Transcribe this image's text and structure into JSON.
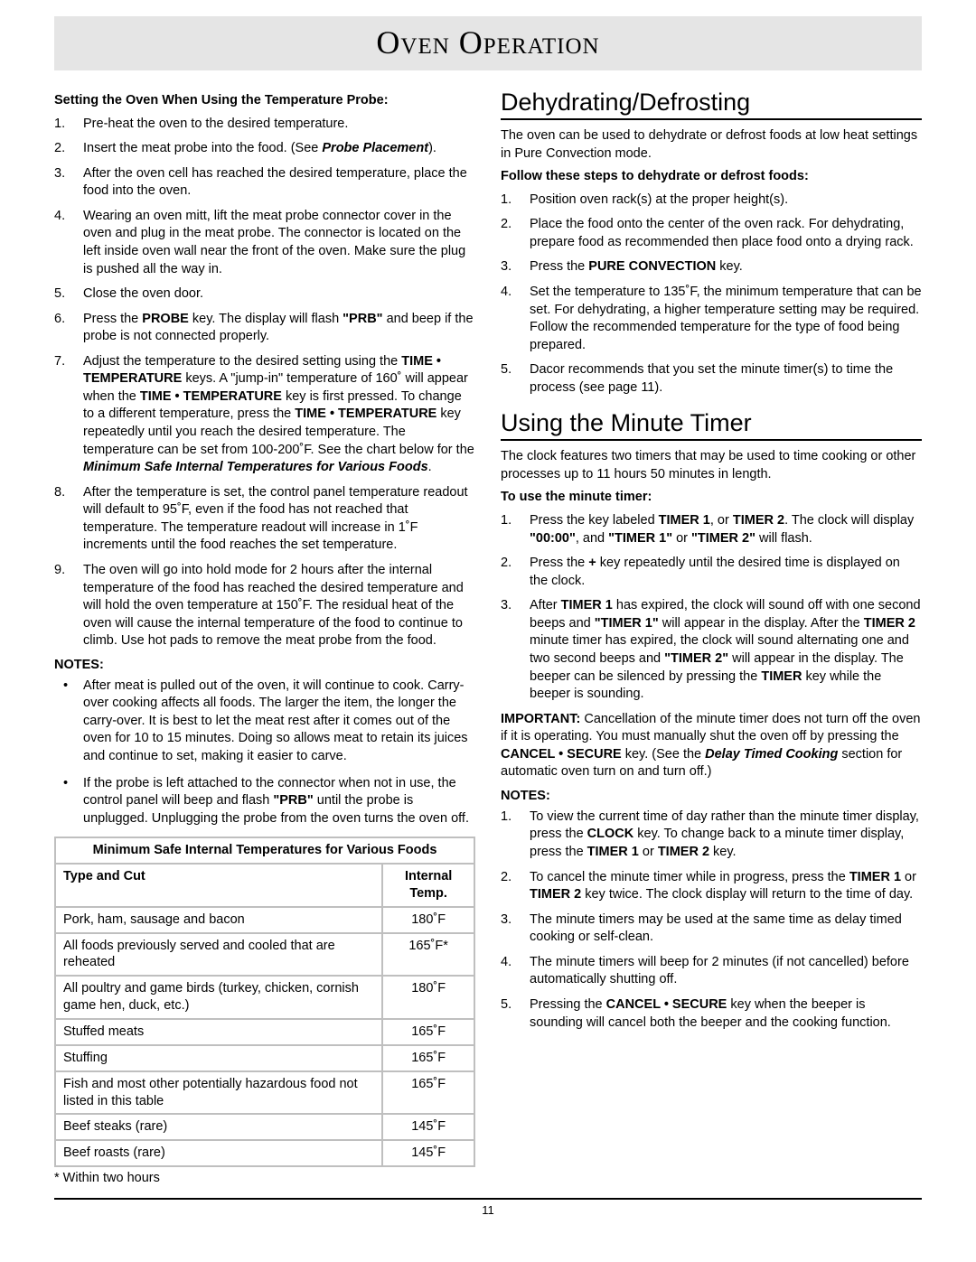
{
  "page": {
    "title": "Oven Operation",
    "page_number": "11"
  },
  "left": {
    "subhead": "Setting the Oven When Using the Temperature Probe:",
    "steps": [
      "Pre-heat the oven to the desired temperature.",
      "Insert the meat probe into the food. (See <span class=\"bi\">Probe Placement</span>).",
      "After the oven cell has reached the desired temperature, place the food into the oven.",
      "Wearing an oven mitt, lift the meat probe connector cover in the oven and plug in the meat probe. The connector is located on the left inside oven wall near the front of the oven. Make sure the plug is pushed all the way in.",
      "Close the oven door.",
      "Press the <span class=\"b\">PROBE</span> key. The display will flash <span class=\"b\">\"PRB\"</span> and beep if the probe is not connected properly.",
      "Adjust the temperature to the desired setting using the <span class=\"b\">TIME • TEMPERATURE</span> keys. A \"jump-in\" temperature of 160˚ will appear when the <span class=\"b\">TIME • TEMPERATURE</span> key is first pressed. To change to a different temperature, press the <span class=\"b\">TIME • TEMPERATURE</span> key repeatedly until you reach the desired temperature. The temperature can be set from 100-200˚F. See the chart below for the <span class=\"bi\">Minimum Safe Internal Temperatures for Various Foods</span>.",
      "After the temperature is set, the control panel temperature readout will default to 95˚F, even if the food has not reached that temperature. The temperature readout will increase in 1˚F increments until the food reaches the set temperature.",
      "The oven will go into hold mode for 2 hours after the internal temperature of the food has reached the desired temperature and will hold the oven temperature at 150˚F. The residual heat of the oven will cause the internal temperature of the food to continue to climb. Use hot pads to remove the meat probe from the food."
    ],
    "notes_label": "NOTES:",
    "notes": [
      "After meat is pulled out of the oven, it will continue to cook. Carry-over cooking affects all foods. The larger the item, the longer the carry-over. It is best to let the meat rest after it comes out of the oven for 10 to 15 minutes. Doing so allows meat to retain its juices and continue to set, making it easier to carve.",
      "If the probe is left attached to the connector when not in use, the control panel will beep and flash <span class=\"b\">\"PRB\"</span> until the probe is unplugged. Unplugging the probe from the oven turns the oven off."
    ],
    "table": {
      "caption": "Minimum Safe Internal Temperatures for Various Foods",
      "col1": "Type and Cut",
      "col2": "Internal Temp.",
      "rows": [
        {
          "cut": "Pork, ham, sausage and bacon",
          "temp": "180˚F"
        },
        {
          "cut": "All foods previously served and cooled that are reheated",
          "temp": "165˚F*"
        },
        {
          "cut": "All poultry and game birds (turkey, chicken, cornish game hen, duck, etc.)",
          "temp": "180˚F"
        },
        {
          "cut": "Stuffed meats",
          "temp": "165˚F"
        },
        {
          "cut": "Stuffing",
          "temp": "165˚F"
        },
        {
          "cut": "Fish and most other potentially hazardous food not listed in this table",
          "temp": "165˚F"
        },
        {
          "cut": "Beef steaks (rare)",
          "temp": "145˚F"
        },
        {
          "cut": "Beef roasts (rare)",
          "temp": "145˚F"
        }
      ],
      "footnote": "* Within two hours"
    }
  },
  "right": {
    "dehyd": {
      "title": "Dehydrating/Defrosting",
      "intro": "The oven can be used to dehydrate or defrost foods at low heat settings in Pure Convection mode.",
      "subhead": "Follow these steps to dehydrate or defrost foods:",
      "steps": [
        "Position oven rack(s) at the proper height(s).",
        "Place the food onto the center of the oven rack. For dehydrating, prepare food as recommended then place food onto a drying rack.",
        "Press the <span class=\"b\">PURE CONVECTION</span> key.",
        "Set the temperature to 135˚F, the minimum temperature that can be set. For dehydrating, a higher temperature setting may be required. Follow the recommended temperature for the type of food being prepared.",
        "Dacor recommends that you set the minute timer(s) to time the process (see page 11)."
      ]
    },
    "timer": {
      "title": "Using the Minute Timer",
      "intro": "The clock features two timers that may be used to time cooking or other processes up to 11 hours 50 minutes in length.",
      "subhead": "To use the minute timer:",
      "steps": [
        "Press the key labeled <span class=\"b\">TIMER 1</span>, or <span class=\"b\">TIMER 2</span>. The clock will display <span class=\"b\">\"00:00\"</span>, and <span class=\"b\">\"TIMER 1\"</span> or  <span class=\"b\">\"TIMER 2\"</span> will flash.",
        "Press the <span class=\"b\">+</span> key repeatedly until the desired time is displayed on the clock.",
        "After <span class=\"b\">TIMER 1</span> has expired, the clock will sound off with one second beeps and <span class=\"b\">\"TIMER 1\"</span> will appear in the display. After the <span class=\"b\">TIMER 2</span> minute timer has expired, the clock will sound alternating one and two second beeps and <span class=\"b\">\"TIMER 2\"</span> will appear in the display. The beeper can be silenced by pressing the <span class=\"b\">TIMER</span> key while the beeper is sounding."
      ],
      "important": "<span class=\"b\">IMPORTANT:</span> Cancellation of the minute timer does not turn off the oven if it is operating. You must manually shut the oven off by pressing the <span class=\"b\">CANCEL • SECURE</span> key. (See the <span class=\"bi\">Delay Timed Cooking</span> section for automatic oven turn on and turn off.)",
      "notes_label": "NOTES:",
      "notes": [
        "To view the current time of day rather than the minute timer display, press the <span class=\"b\">CLOCK</span> key. To change back to a minute timer display, press the <span class=\"b\">TIMER 1</span> or <span class=\"b\">TIMER 2</span> key.",
        "To cancel the minute timer while in progress, press the <span class=\"b\">TIMER 1</span> or <span class=\"b\">TIMER 2</span> key twice. The clock display will return to the time of day.",
        "The minute timers may be used at the same time as delay timed cooking or self-clean.",
        "The minute timers will beep for 2 minutes (if not cancelled) before automatically shutting off.",
        "Pressing the <span class=\"b\">CANCEL • SECURE</span> key when the beeper is sounding will cancel both the beeper and the cooking function."
      ]
    }
  }
}
